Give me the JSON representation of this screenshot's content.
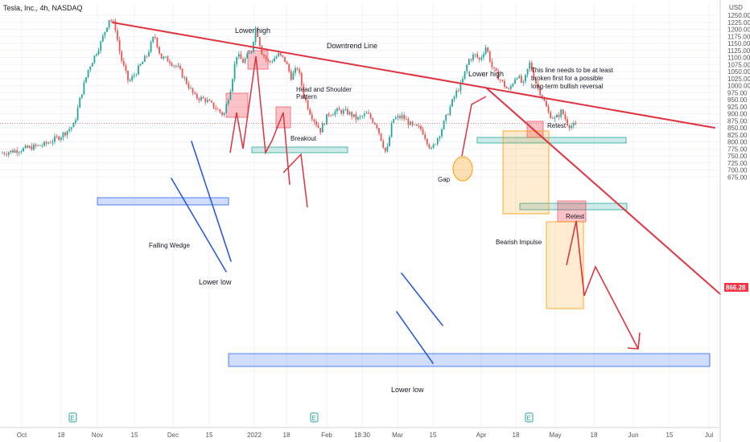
{
  "header": {
    "title": "Tesla, Inc., 4h, NASDAQ",
    "currency": "USD"
  },
  "chart_data": {
    "type": "candlestick",
    "ylim": [
      670,
      1260
    ],
    "y_ticks": [
      "675.00",
      "700.00",
      "725.00",
      "750.00",
      "775.00",
      "800.00",
      "825.00",
      "850.00",
      "875.00",
      "900.00",
      "925.00",
      "950.00",
      "975.00",
      "1000.00",
      "1025.00",
      "1050.00",
      "1075.00",
      "1100.00",
      "1125.00",
      "1150.00",
      "1175.00",
      "1200.00",
      "1225.00",
      "1250.00"
    ],
    "x_labels": [
      "Oct",
      "18",
      "Nov",
      "15",
      "Dec",
      "15",
      "2022",
      "18",
      "Feb",
      "18:30",
      "Mar",
      "15",
      "Apr",
      "18",
      "May",
      "18",
      "Jun",
      "15",
      "Jul"
    ],
    "last_price": "866.28",
    "colors": {
      "up": "#26a69a",
      "down": "#ef5350",
      "trend": "#e0323f",
      "wedge": "#2b5bd6",
      "zone_blue": "#2962ff",
      "zone_green": "#26a69a",
      "zone_orange": "#ff9800",
      "zone_red": "#f23645"
    },
    "annotations": {
      "downtrend": "Downtrend Line",
      "lower_high_1": "Lower high",
      "lower_high_2": "Lower high",
      "hs_1": "Head and Shoulder",
      "hs_2": "Pattern",
      "breakout": "Breakout",
      "falling_wedge": "Falling Wedge",
      "lower_low_1": "Lower low",
      "lower_low_2": "Lower low",
      "gap": "Gap",
      "retest_1": "Retest",
      "retest_2": "Retest",
      "bearish": "Bearish Impulse",
      "note_1": "This line needs to be at least",
      "note_2": "broken first for a possible",
      "note_3": "long-term bullish reversal"
    },
    "earnings_marker": "E"
  }
}
